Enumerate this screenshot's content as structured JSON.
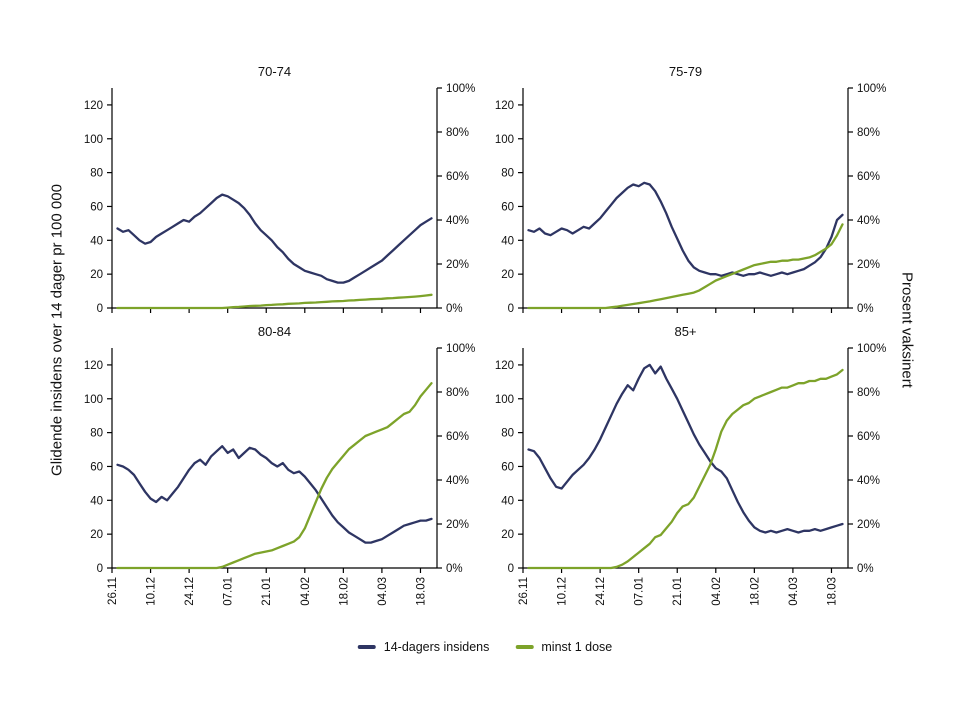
{
  "labels": {
    "left_axis": "Glidende insidens over 14 dager pr 100 000",
    "right_axis": "Prosent vaksinert"
  },
  "legend": [
    {
      "label": "14-dagers insidens",
      "color": "#2e3563"
    },
    {
      "label": "minst 1 dose",
      "color": "#7da32a"
    }
  ],
  "colors": {
    "axis": "#000000",
    "title": "#2b2b2b"
  },
  "axes": {
    "x": {
      "domain": [
        0,
        118
      ],
      "tick_days": [
        0,
        14,
        28,
        42,
        56,
        70,
        84,
        98,
        112
      ],
      "tick_labels": [
        "26.11",
        "10.12",
        "24.12",
        "07.01",
        "21.01",
        "04.02",
        "18.02",
        "04.03",
        "18.03"
      ]
    },
    "left": {
      "ticks": [
        0,
        20,
        40,
        60,
        80,
        100,
        120
      ],
      "scale_max": 130
    },
    "right": {
      "values": [
        0,
        20,
        40,
        60,
        80,
        100
      ],
      "tick_labels": [
        "0%",
        "20%",
        "40%",
        "60%",
        "80%",
        "100%"
      ],
      "scale_max": 100
    }
  },
  "chart_data": [
    {
      "type": "line",
      "title": "70-74",
      "x_start": 2,
      "x_step": 2,
      "series": [
        {
          "name": "14-dagers insidens",
          "axis": "left",
          "values": [
            47,
            45,
            46,
            43,
            40,
            38,
            39,
            42,
            44,
            46,
            48,
            50,
            52,
            51,
            54,
            56,
            59,
            62,
            65,
            67,
            66,
            64,
            62,
            59,
            55,
            50,
            46,
            43,
            40,
            36,
            33,
            29,
            26,
            24,
            22,
            21,
            20,
            19,
            17,
            16,
            15,
            15,
            16,
            18,
            20,
            22,
            24,
            26,
            28,
            31,
            34,
            37,
            40,
            43,
            46,
            49,
            51,
            53
          ]
        },
        {
          "name": "minst 1 dose",
          "axis": "right",
          "values": [
            0,
            0,
            0,
            0,
            0,
            0,
            0,
            0,
            0,
            0,
            0,
            0,
            0,
            0,
            0,
            0,
            0,
            0,
            0,
            0,
            0.2,
            0.4,
            0.5,
            0.7,
            0.9,
            1,
            1.1,
            1.3,
            1.4,
            1.6,
            1.7,
            1.9,
            2,
            2.1,
            2.3,
            2.4,
            2.5,
            2.7,
            2.8,
            3,
            3.1,
            3.2,
            3.4,
            3.5,
            3.7,
            3.8,
            4,
            4.1,
            4.2,
            4.4,
            4.5,
            4.7,
            4.8,
            5,
            5.2,
            5.4,
            5.7,
            6
          ]
        }
      ]
    },
    {
      "type": "line",
      "title": "75-79",
      "x_start": 2,
      "x_step": 2,
      "series": [
        {
          "name": "14-dagers insidens",
          "axis": "left",
          "values": [
            46,
            45,
            47,
            44,
            43,
            45,
            47,
            46,
            44,
            46,
            48,
            47,
            50,
            53,
            57,
            61,
            65,
            68,
            71,
            73,
            72,
            74,
            73,
            69,
            63,
            56,
            48,
            41,
            34,
            28,
            24,
            22,
            21,
            20,
            20,
            19,
            20,
            21,
            20,
            19,
            20,
            20,
            21,
            20,
            19,
            20,
            21,
            20,
            21,
            22,
            23,
            25,
            27,
            30,
            35,
            42,
            52,
            55
          ]
        },
        {
          "name": "minst 1 dose",
          "axis": "right",
          "values": [
            0,
            0,
            0,
            0,
            0,
            0,
            0,
            0,
            0,
            0,
            0,
            0,
            0,
            0,
            0,
            0.3,
            0.6,
            1,
            1.4,
            1.8,
            2.2,
            2.6,
            3,
            3.5,
            4,
            4.5,
            5,
            5.5,
            6,
            6.5,
            7,
            8,
            9.5,
            11,
            12.5,
            13.5,
            14.5,
            15.5,
            16.5,
            17.5,
            18.5,
            19.5,
            20,
            20.5,
            21,
            21,
            21.5,
            21.5,
            22,
            22,
            22.5,
            23,
            24,
            25.5,
            27,
            29,
            33,
            38
          ]
        }
      ]
    },
    {
      "type": "line",
      "title": "80-84",
      "x_start": 2,
      "x_step": 2,
      "series": [
        {
          "name": "14-dagers insidens",
          "axis": "left",
          "values": [
            61,
            60,
            58,
            55,
            50,
            45,
            41,
            39,
            42,
            40,
            44,
            48,
            53,
            58,
            62,
            64,
            61,
            66,
            69,
            72,
            68,
            70,
            65,
            68,
            71,
            70,
            67,
            65,
            62,
            60,
            62,
            58,
            56,
            57,
            54,
            50,
            46,
            41,
            36,
            31,
            27,
            24,
            21,
            19,
            17,
            15,
            15,
            16,
            17,
            19,
            21,
            23,
            25,
            26,
            27,
            28,
            28,
            29
          ]
        },
        {
          "name": "minst 1 dose",
          "axis": "right",
          "values": [
            0,
            0,
            0,
            0,
            0,
            0,
            0,
            0,
            0,
            0,
            0,
            0,
            0,
            0,
            0,
            0,
            0,
            0,
            0,
            0.5,
            1.5,
            2.5,
            3.5,
            4.5,
            5.5,
            6.5,
            7,
            7.5,
            8,
            9,
            10,
            11,
            12,
            14,
            18,
            24,
            30,
            36,
            41,
            45,
            48,
            51,
            54,
            56,
            58,
            60,
            61,
            62,
            63,
            64,
            66,
            68,
            70,
            71,
            74,
            78,
            81,
            84
          ]
        }
      ]
    },
    {
      "type": "line",
      "title": "85+",
      "x_start": 2,
      "x_step": 2,
      "series": [
        {
          "name": "14-dagers insidens",
          "axis": "left",
          "values": [
            70,
            69,
            65,
            59,
            53,
            48,
            47,
            51,
            55,
            58,
            61,
            65,
            70,
            76,
            83,
            90,
            97,
            103,
            108,
            105,
            112,
            118,
            120,
            115,
            119,
            112,
            106,
            100,
            93,
            86,
            79,
            73,
            68,
            63,
            59,
            57,
            53,
            46,
            39,
            33,
            28,
            24,
            22,
            21,
            22,
            21,
            22,
            23,
            22,
            21,
            22,
            22,
            23,
            22,
            23,
            24,
            25,
            26
          ]
        },
        {
          "name": "minst 1 dose",
          "axis": "right",
          "values": [
            0,
            0,
            0,
            0,
            0,
            0,
            0,
            0,
            0,
            0,
            0,
            0,
            0,
            0,
            0,
            0,
            0.5,
            1.5,
            3,
            5,
            7,
            9,
            11,
            14,
            15,
            18,
            21,
            25,
            28,
            29,
            32,
            37,
            42,
            47,
            54,
            62,
            67,
            70,
            72,
            74,
            75,
            77,
            78,
            79,
            80,
            81,
            82,
            82,
            83,
            84,
            84,
            85,
            85,
            86,
            86,
            87,
            88,
            90
          ]
        }
      ]
    }
  ]
}
